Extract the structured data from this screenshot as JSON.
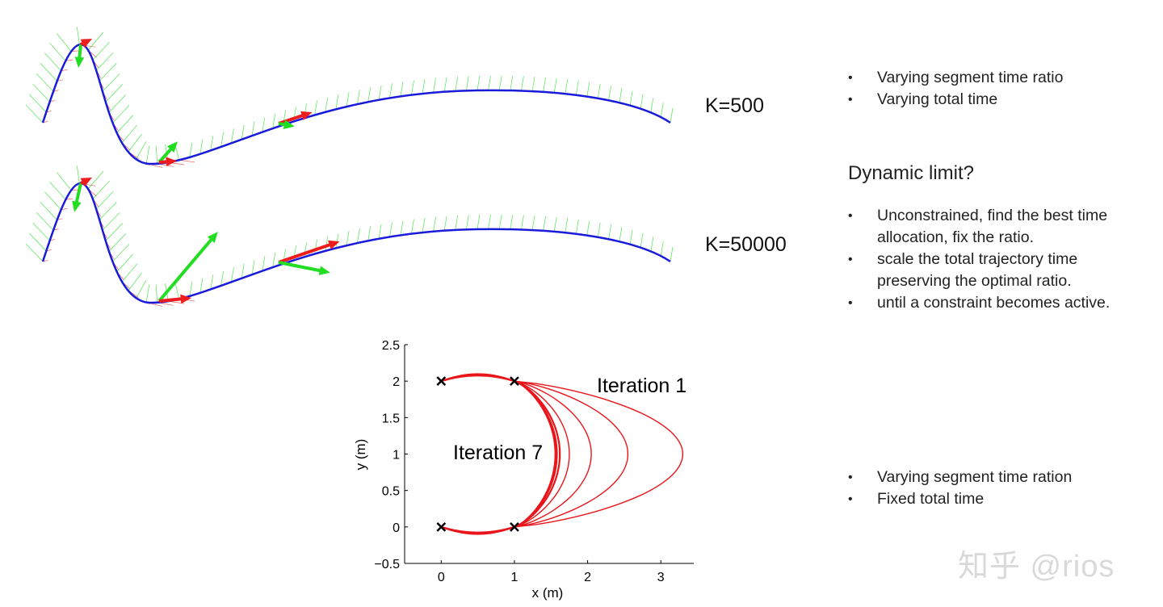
{
  "figures": {
    "top": {
      "label": "K=500"
    },
    "bottom": {
      "label": "K=50000"
    }
  },
  "colors": {
    "trajectory": "#1a1adb",
    "velocity": "#ee1c1c",
    "acceleration": "#22dd22",
    "plot_curve": "#e8161b"
  },
  "bullets_top": [
    "Varying segment time ratio",
    "Varying total time"
  ],
  "heading": "Dynamic limit?",
  "bullets_mid": [
    "Unconstrained, find the best time allocation, fix the ratio.",
    "scale the total trajectory time preserving the optimal ratio.",
    "until a constraint becomes active."
  ],
  "bullets_bottom": [
    "Varying segment time ration",
    "Fixed total time"
  ],
  "watermark": "知乎 @rios",
  "chart_data": {
    "type": "line",
    "xlabel": "x (m)",
    "ylabel": "y (m)",
    "xlim": [
      -0.5,
      3.45
    ],
    "ylim": [
      -0.5,
      2.5
    ],
    "xticks": [
      0,
      1,
      2,
      3
    ],
    "yticks": [
      -0.5,
      0,
      0.5,
      1,
      1.5,
      2,
      2.5
    ],
    "grid": false,
    "waypoints": [
      [
        0,
        2
      ],
      [
        1,
        2
      ],
      [
        0,
        0
      ],
      [
        1,
        0
      ]
    ],
    "annotations": [
      {
        "text": "Iteration 1",
        "x": 2.2,
        "y": 1.9
      },
      {
        "text": "Iteration 7",
        "x": 0.18,
        "y": 1.0
      }
    ],
    "series_max_x": [
      3.3,
      2.55,
      2.05,
      1.75,
      1.62,
      1.58,
      1.56
    ],
    "arc_bulge_y": 0.1
  }
}
